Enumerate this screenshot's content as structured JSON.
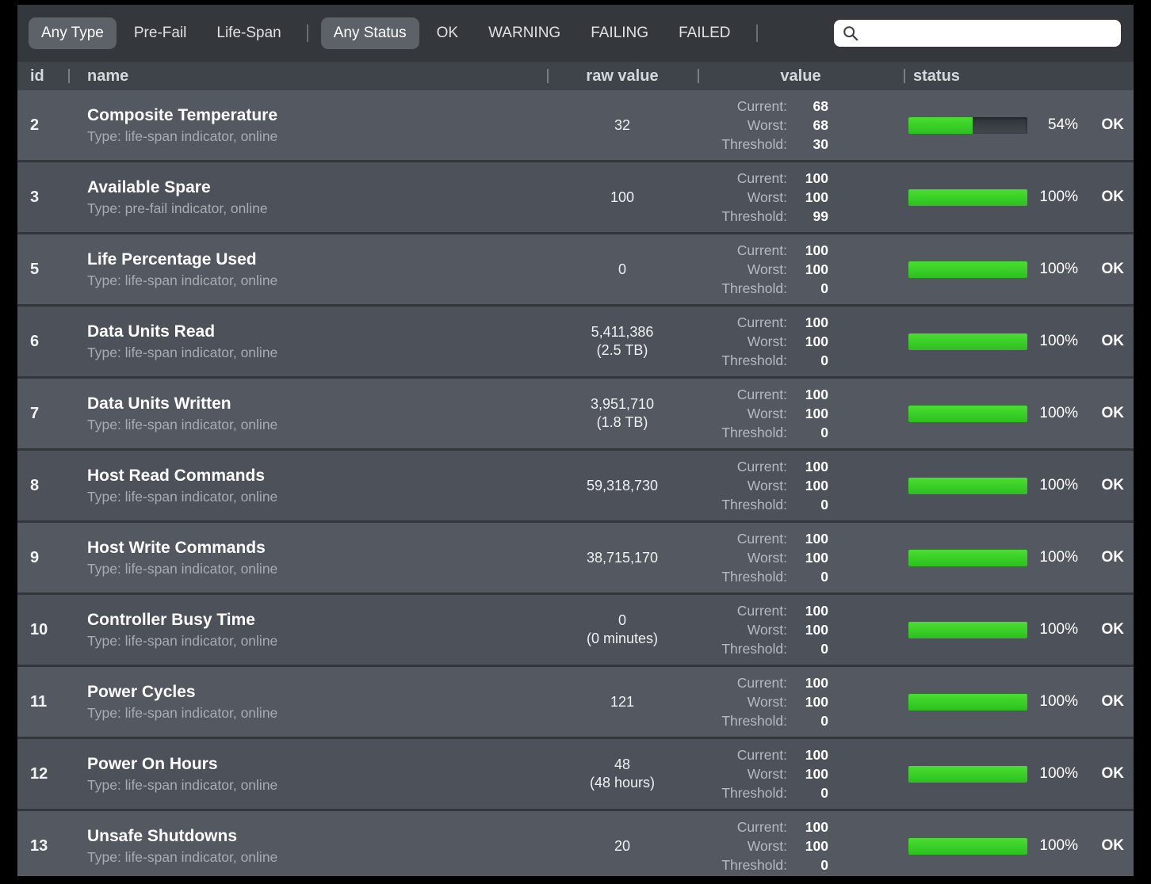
{
  "toolbar": {
    "type_filters": [
      {
        "label": "Any Type",
        "selected": true
      },
      {
        "label": "Pre-Fail",
        "selected": false
      },
      {
        "label": "Life-Span",
        "selected": false
      }
    ],
    "status_filters": [
      {
        "label": "Any Status",
        "selected": true
      },
      {
        "label": "OK",
        "selected": false
      },
      {
        "label": "WARNING",
        "selected": false
      },
      {
        "label": "FAILING",
        "selected": false
      },
      {
        "label": "FAILED",
        "selected": false
      }
    ],
    "search": {
      "value": "",
      "placeholder": ""
    }
  },
  "table": {
    "columns": {
      "id": "id",
      "name": "name",
      "raw": "raw value",
      "value": "value",
      "status": "status"
    },
    "value_labels": {
      "current": "Current:",
      "worst": "Worst:",
      "threshold": "Threshold:"
    },
    "rows": [
      {
        "id": "2",
        "name": "Composite Temperature",
        "type": "Type: life-span indicator, online",
        "raw": [
          "32"
        ],
        "current": "68",
        "worst": "68",
        "threshold": "30",
        "percent": 54,
        "percent_label": "54%",
        "status": "OK"
      },
      {
        "id": "3",
        "name": "Available Spare",
        "type": "Type: pre-fail indicator, online",
        "raw": [
          "100"
        ],
        "current": "100",
        "worst": "100",
        "threshold": "99",
        "percent": 100,
        "percent_label": "100%",
        "status": "OK"
      },
      {
        "id": "5",
        "name": "Life Percentage Used",
        "type": "Type: life-span indicator, online",
        "raw": [
          "0"
        ],
        "current": "100",
        "worst": "100",
        "threshold": "0",
        "percent": 100,
        "percent_label": "100%",
        "status": "OK"
      },
      {
        "id": "6",
        "name": "Data Units Read",
        "type": "Type: life-span indicator, online",
        "raw": [
          "5,411,386",
          "(2.5 TB)"
        ],
        "current": "100",
        "worst": "100",
        "threshold": "0",
        "percent": 100,
        "percent_label": "100%",
        "status": "OK"
      },
      {
        "id": "7",
        "name": "Data Units Written",
        "type": "Type: life-span indicator, online",
        "raw": [
          "3,951,710",
          "(1.8 TB)"
        ],
        "current": "100",
        "worst": "100",
        "threshold": "0",
        "percent": 100,
        "percent_label": "100%",
        "status": "OK"
      },
      {
        "id": "8",
        "name": "Host Read Commands",
        "type": "Type: life-span indicator, online",
        "raw": [
          "59,318,730"
        ],
        "current": "100",
        "worst": "100",
        "threshold": "0",
        "percent": 100,
        "percent_label": "100%",
        "status": "OK"
      },
      {
        "id": "9",
        "name": "Host Write Commands",
        "type": "Type: life-span indicator, online",
        "raw": [
          "38,715,170"
        ],
        "current": "100",
        "worst": "100",
        "threshold": "0",
        "percent": 100,
        "percent_label": "100%",
        "status": "OK"
      },
      {
        "id": "10",
        "name": "Controller Busy Time",
        "type": "Type: life-span indicator, online",
        "raw": [
          "0",
          "(0 minutes)"
        ],
        "current": "100",
        "worst": "100",
        "threshold": "0",
        "percent": 100,
        "percent_label": "100%",
        "status": "OK"
      },
      {
        "id": "11",
        "name": "Power Cycles",
        "type": "Type: life-span indicator, online",
        "raw": [
          "121"
        ],
        "current": "100",
        "worst": "100",
        "threshold": "0",
        "percent": 100,
        "percent_label": "100%",
        "status": "OK"
      },
      {
        "id": "12",
        "name": "Power On Hours",
        "type": "Type: life-span indicator, online",
        "raw": [
          "48",
          "(48 hours)"
        ],
        "current": "100",
        "worst": "100",
        "threshold": "0",
        "percent": 100,
        "percent_label": "100%",
        "status": "OK"
      },
      {
        "id": "13",
        "name": "Unsafe Shutdowns",
        "type": "Type: life-span indicator, online",
        "raw": [
          "20"
        ],
        "current": "100",
        "worst": "100",
        "threshold": "0",
        "percent": 100,
        "percent_label": "100%",
        "status": "OK"
      }
    ]
  },
  "colors": {
    "bar_green": "#35cf22",
    "bar_track": "#383d44",
    "row_odd": "#545961",
    "row_even": "#4d525a",
    "selected_filter_bg": "#5d6269",
    "status_ok_text": "#ffffff"
  }
}
